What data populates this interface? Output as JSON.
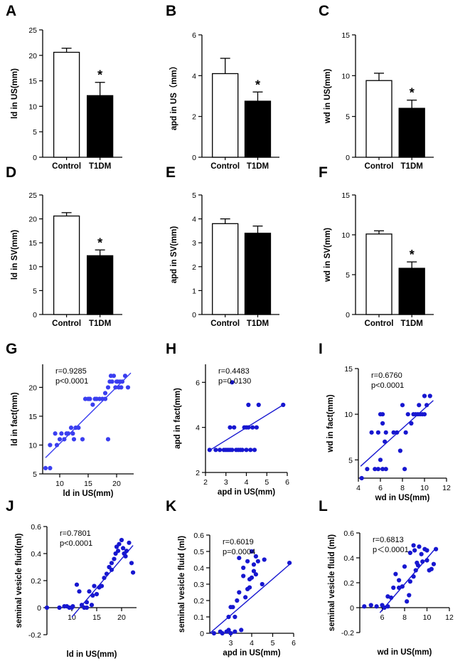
{
  "chart_data": [
    {
      "id": "A",
      "type": "bar",
      "panel_label": "A",
      "ylabel": "ld in US(mm)",
      "ylim": [
        0,
        25
      ],
      "yticks": [
        0,
        5,
        10,
        15,
        20,
        25
      ],
      "categories": [
        "Control",
        "T1DM"
      ],
      "values": [
        20.6,
        12.1
      ],
      "errors": [
        0.8,
        2.6
      ],
      "fills": [
        "#ffffff",
        "#000000"
      ],
      "annotations": [
        "",
        "*"
      ]
    },
    {
      "id": "B",
      "type": "bar",
      "panel_label": "B",
      "ylabel": "apd in US（mm）",
      "ylim": [
        0,
        6
      ],
      "yticks": [
        0,
        2,
        4,
        6
      ],
      "categories": [
        "Control",
        "T1DM"
      ],
      "values": [
        4.1,
        2.75
      ],
      "errors": [
        0.75,
        0.45
      ],
      "fills": [
        "#ffffff",
        "#000000"
      ],
      "annotations": [
        "",
        "*"
      ]
    },
    {
      "id": "C",
      "type": "bar",
      "panel_label": "C",
      "ylabel": "wd in US(mm)",
      "ylim": [
        0,
        15
      ],
      "yticks": [
        0,
        5,
        10,
        15
      ],
      "categories": [
        "Control",
        "T1DM"
      ],
      "values": [
        9.4,
        6.0
      ],
      "errors": [
        0.9,
        1.0
      ],
      "fills": [
        "#ffffff",
        "#000000"
      ],
      "annotations": [
        "",
        "*"
      ]
    },
    {
      "id": "D",
      "type": "bar",
      "panel_label": "D",
      "ylabel": "ld in SV(mm)",
      "ylim": [
        0,
        25
      ],
      "yticks": [
        0,
        5,
        10,
        15,
        20,
        25
      ],
      "categories": [
        "Control",
        "T1DM"
      ],
      "values": [
        20.6,
        12.3
      ],
      "errors": [
        0.7,
        1.2
      ],
      "fills": [
        "#ffffff",
        "#000000"
      ],
      "annotations": [
        "",
        "*"
      ]
    },
    {
      "id": "E",
      "type": "bar",
      "panel_label": "E",
      "ylabel": "apd in SV(mm)",
      "ylim": [
        0,
        5
      ],
      "yticks": [
        0,
        1,
        2,
        3,
        4,
        5
      ],
      "categories": [
        "Control",
        "T1DM"
      ],
      "values": [
        3.8,
        3.4
      ],
      "errors": [
        0.2,
        0.3
      ],
      "fills": [
        "#ffffff",
        "#000000"
      ],
      "annotations": [
        "",
        ""
      ]
    },
    {
      "id": "F",
      "type": "bar",
      "panel_label": "F",
      "ylabel": "wd in SV(mm)",
      "ylim": [
        0,
        15
      ],
      "yticks": [
        0,
        5,
        10,
        15
      ],
      "categories": [
        "Control",
        "T1DM"
      ],
      "values": [
        10.1,
        5.8
      ],
      "errors": [
        0.4,
        0.8
      ],
      "fills": [
        "#ffffff",
        "#000000"
      ],
      "annotations": [
        "",
        "*"
      ]
    },
    {
      "id": "G",
      "type": "scatter",
      "panel_label": "G",
      "xlabel": "ld in US(mm)",
      "ylabel": "ld in fact(mm)",
      "xlim": [
        7,
        23
      ],
      "ylim": [
        5,
        24
      ],
      "xticks": [
        10,
        15,
        20
      ],
      "yticks": [
        5,
        10,
        15,
        20
      ],
      "r_text": "r=0.9285",
      "p_text": "p<0.0001",
      "color": "#3a3ef0",
      "fit": [
        [
          7.5,
          7.8
        ],
        [
          22.5,
          22.5
        ]
      ],
      "points": [
        [
          7.5,
          6
        ],
        [
          8.3,
          6
        ],
        [
          8.3,
          10
        ],
        [
          9.2,
          12
        ],
        [
          9.5,
          10
        ],
        [
          10,
          11
        ],
        [
          10.3,
          12
        ],
        [
          10.8,
          11
        ],
        [
          11.2,
          12
        ],
        [
          11.5,
          12
        ],
        [
          12,
          13
        ],
        [
          12.3,
          12
        ],
        [
          12.5,
          11
        ],
        [
          12.8,
          13
        ],
        [
          13.3,
          13
        ],
        [
          14,
          11
        ],
        [
          14.5,
          18
        ],
        [
          15,
          18
        ],
        [
          15.3,
          18
        ],
        [
          15.8,
          17
        ],
        [
          16.2,
          18
        ],
        [
          16.5,
          18
        ],
        [
          17,
          18
        ],
        [
          17.5,
          18
        ],
        [
          18,
          18
        ],
        [
          18,
          19
        ],
        [
          18.5,
          11
        ],
        [
          18.5,
          20
        ],
        [
          18.8,
          21
        ],
        [
          19,
          22
        ],
        [
          19.2,
          21
        ],
        [
          19.5,
          22
        ],
        [
          19.8,
          20
        ],
        [
          20,
          21
        ],
        [
          20.2,
          21
        ],
        [
          20.4,
          20
        ],
        [
          20.6,
          21
        ],
        [
          20.8,
          20
        ],
        [
          21,
          21
        ],
        [
          21.5,
          22
        ],
        [
          22,
          20
        ]
      ]
    },
    {
      "id": "H",
      "type": "scatter",
      "panel_label": "H",
      "xlabel": "apd in US(mm)",
      "ylabel": "apd in fact(mm)",
      "xlim": [
        2,
        6
      ],
      "ylim": [
        2,
        6.8
      ],
      "xticks": [
        2,
        3,
        4,
        5,
        6
      ],
      "yticks": [
        2,
        4,
        6
      ],
      "r_text": "r=0.4483",
      "p_text": "p=0.0130",
      "color": "#1717d0",
      "fit": [
        [
          2.2,
          2.98
        ],
        [
          5.8,
          5.0
        ]
      ],
      "points": [
        [
          2.2,
          3
        ],
        [
          2.5,
          3
        ],
        [
          2.7,
          3
        ],
        [
          2.9,
          3
        ],
        [
          3.0,
          3
        ],
        [
          3.1,
          3
        ],
        [
          3.2,
          3
        ],
        [
          3.2,
          4
        ],
        [
          3.3,
          6
        ],
        [
          3.3,
          3
        ],
        [
          3.4,
          4
        ],
        [
          3.5,
          3
        ],
        [
          3.6,
          3
        ],
        [
          3.7,
          3
        ],
        [
          3.8,
          3
        ],
        [
          3.9,
          4
        ],
        [
          4.0,
          4
        ],
        [
          4.0,
          3
        ],
        [
          4.1,
          4
        ],
        [
          4.1,
          5
        ],
        [
          4.2,
          3
        ],
        [
          4.3,
          4
        ],
        [
          4.4,
          3
        ],
        [
          4.5,
          4
        ],
        [
          4.6,
          5
        ],
        [
          5.8,
          5
        ]
      ]
    },
    {
      "id": "I",
      "type": "scatter",
      "panel_label": "I",
      "xlabel": "wd in US(mm)",
      "ylabel": "wd in fact(mm)",
      "xlim": [
        4,
        12
      ],
      "ylim": [
        3,
        15
      ],
      "xticks": [
        4,
        6,
        8,
        10,
        12
      ],
      "yticks": [
        5,
        10,
        15
      ],
      "r_text": "r=0.6760",
      "p_text": "p<0.0001",
      "color": "#1717d0",
      "fit": [
        [
          4.2,
          4.3
        ],
        [
          10.8,
          11.5
        ]
      ],
      "points": [
        [
          4.3,
          3
        ],
        [
          4.8,
          4
        ],
        [
          5.2,
          8
        ],
        [
          5.5,
          4
        ],
        [
          5.8,
          4
        ],
        [
          5.8,
          8
        ],
        [
          6.0,
          5
        ],
        [
          6.0,
          10
        ],
        [
          6.2,
          4
        ],
        [
          6.2,
          9
        ],
        [
          6.2,
          10
        ],
        [
          6.4,
          7
        ],
        [
          6.5,
          8
        ],
        [
          6.5,
          4
        ],
        [
          7.2,
          8
        ],
        [
          7.5,
          8
        ],
        [
          7.8,
          6
        ],
        [
          8.0,
          11
        ],
        [
          8.2,
          4
        ],
        [
          8.3,
          8
        ],
        [
          8.5,
          10
        ],
        [
          8.8,
          9
        ],
        [
          9.0,
          10
        ],
        [
          9.2,
          10
        ],
        [
          9.4,
          10
        ],
        [
          9.5,
          11
        ],
        [
          9.6,
          10
        ],
        [
          9.8,
          10
        ],
        [
          10,
          10
        ],
        [
          10,
          12
        ],
        [
          10.2,
          11
        ],
        [
          10.5,
          12
        ]
      ]
    },
    {
      "id": "J",
      "type": "scatter",
      "panel_label": "J",
      "xlabel": "ld in US(mm)",
      "ylabel": "seminal vesicle fluid(ml)",
      "xlim": [
        5,
        23
      ],
      "ylim": [
        -0.2,
        0.6
      ],
      "xticks": [
        10,
        15,
        20
      ],
      "yticks": [
        -0.2,
        0,
        0.2,
        0.4,
        0.6
      ],
      "r_text": "r=0.7801",
      "p_text": "p<0.0001",
      "color": "#1717d0",
      "fit": [
        [
          10,
          -0.07
        ],
        [
          22.3,
          0.46
        ]
      ],
      "points": [
        [
          5,
          0
        ],
        [
          7.5,
          0
        ],
        [
          8.5,
          0.01
        ],
        [
          9,
          0.01
        ],
        [
          9.5,
          0
        ],
        [
          10,
          0
        ],
        [
          10.2,
          0.01
        ],
        [
          11,
          0.17
        ],
        [
          11.5,
          0.12
        ],
        [
          12,
          0.02
        ],
        [
          12.5,
          0
        ],
        [
          13,
          0
        ],
        [
          13,
          0.04
        ],
        [
          13.5,
          0.12
        ],
        [
          14,
          0.02
        ],
        [
          14.2,
          0.09
        ],
        [
          14.5,
          0.16
        ],
        [
          15,
          0.1
        ],
        [
          15.5,
          0.15
        ],
        [
          16,
          0.16
        ],
        [
          16.5,
          0.22
        ],
        [
          17,
          0.25
        ],
        [
          17.5,
          0.3
        ],
        [
          18,
          0.28
        ],
        [
          18,
          0.33
        ],
        [
          18.5,
          0.36
        ],
        [
          18.8,
          0.4
        ],
        [
          19,
          0.45
        ],
        [
          19.3,
          0.42
        ],
        [
          19.5,
          0.47
        ],
        [
          20,
          0.5
        ],
        [
          20.3,
          0.44
        ],
        [
          20.5,
          0.4
        ],
        [
          20.8,
          0.38
        ],
        [
          21,
          0.42
        ],
        [
          21.5,
          0.48
        ],
        [
          22,
          0.33
        ],
        [
          22.3,
          0.26
        ]
      ]
    },
    {
      "id": "K",
      "type": "scatter",
      "panel_label": "K",
      "xlabel": "apd in US(mm)",
      "ylabel": "seminal vesicle fluid (ml)",
      "xlim": [
        2,
        6
      ],
      "ylim": [
        0,
        0.6
      ],
      "xticks": [
        3,
        4,
        5,
        6
      ],
      "yticks": [
        0,
        0.1,
        0.2,
        0.3,
        0.4,
        0.5,
        0.6
      ],
      "r_text": "r=0.6019",
      "p_text": "p=0.0004",
      "color": "#1717d0",
      "fit": [
        [
          2,
          0.0
        ],
        [
          5.8,
          0.42
        ]
      ],
      "points": [
        [
          2.2,
          0
        ],
        [
          2.5,
          0.01
        ],
        [
          2.6,
          0
        ],
        [
          2.8,
          0.01
        ],
        [
          2.9,
          0.02
        ],
        [
          2.9,
          0.1
        ],
        [
          3.0,
          0
        ],
        [
          3.0,
          0.16
        ],
        [
          3.1,
          0.16
        ],
        [
          3.2,
          0.01
        ],
        [
          3.2,
          0.1
        ],
        [
          3.3,
          0.2
        ],
        [
          3.4,
          0.46
        ],
        [
          3.4,
          0.25
        ],
        [
          3.5,
          0.02
        ],
        [
          3.6,
          0.35
        ],
        [
          3.6,
          0.4
        ],
        [
          3.7,
          0.22
        ],
        [
          3.8,
          0.27
        ],
        [
          3.8,
          0.44
        ],
        [
          3.9,
          0.33
        ],
        [
          3.9,
          0.28
        ],
        [
          4.0,
          0.5
        ],
        [
          4.0,
          0.34
        ],
        [
          4.1,
          0.38
        ],
        [
          4.1,
          0.42
        ],
        [
          4.2,
          0.36
        ],
        [
          4.2,
          0.47
        ],
        [
          4.3,
          0.44
        ],
        [
          4.5,
          0.3
        ],
        [
          4.6,
          0.45
        ],
        [
          5.8,
          0.43
        ]
      ]
    },
    {
      "id": "L",
      "type": "scatter",
      "panel_label": "L",
      "xlabel": "wd in US(mm)",
      "ylabel": "seminal vesicle fluid (ml)",
      "xlim": [
        4,
        12
      ],
      "ylim": [
        -0.2,
        0.6
      ],
      "xticks": [
        6,
        8,
        10,
        12
      ],
      "yticks": [
        -0.2,
        0,
        0.2,
        0.4,
        0.6
      ],
      "r_text": "r=0.6813",
      "p_text": "p＜0.0001",
      "color": "#1717d0",
      "fit": [
        [
          5.8,
          -0.04
        ],
        [
          10.8,
          0.48
        ]
      ],
      "points": [
        [
          4.4,
          0.01
        ],
        [
          5.0,
          0.02
        ],
        [
          5.5,
          0.01
        ],
        [
          6.0,
          0.02
        ],
        [
          6.2,
          0
        ],
        [
          6.5,
          0.01
        ],
        [
          6.5,
          0.09
        ],
        [
          6.8,
          0.08
        ],
        [
          7.0,
          0.16
        ],
        [
          7.2,
          0.27
        ],
        [
          7.5,
          0.16
        ],
        [
          7.5,
          0.22
        ],
        [
          7.8,
          0.17
        ],
        [
          8.0,
          0.33
        ],
        [
          8.2,
          0.05
        ],
        [
          8.4,
          0.1
        ],
        [
          8.5,
          0.21
        ],
        [
          8.5,
          0.44
        ],
        [
          8.8,
          0.25
        ],
        [
          8.8,
          0.5
        ],
        [
          8.9,
          0.46
        ],
        [
          9.0,
          0.3
        ],
        [
          9.1,
          0.36
        ],
        [
          9.2,
          0.34
        ],
        [
          9.3,
          0.49
        ],
        [
          9.5,
          0.43
        ],
        [
          9.6,
          0.37
        ],
        [
          9.8,
          0.47
        ],
        [
          10,
          0.38
        ],
        [
          10,
          0.46
        ],
        [
          10.2,
          0.3
        ],
        [
          10.4,
          0.31
        ],
        [
          10.6,
          0.35
        ],
        [
          10.8,
          0.47
        ]
      ]
    }
  ]
}
